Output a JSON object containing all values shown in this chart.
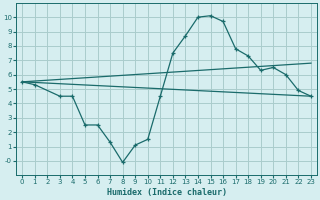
{
  "xlabel": "Humidex (Indice chaleur)",
  "bg_color": "#d6eef0",
  "grid_color": "#aacccc",
  "line_color": "#1a6b6b",
  "series": [
    {
      "x": [
        0,
        1,
        3,
        4,
        5,
        6,
        7,
        8,
        9,
        10,
        11,
        12,
        13,
        14,
        15,
        16,
        17,
        18,
        19,
        20,
        21,
        22,
        23
      ],
      "y": [
        5.5,
        5.3,
        4.5,
        4.5,
        2.5,
        2.5,
        1.3,
        -0.1,
        1.1,
        1.5,
        4.5,
        7.5,
        8.7,
        10.0,
        10.1,
        9.7,
        7.8,
        7.3,
        6.3,
        6.5,
        6.0,
        4.9,
        4.5
      ]
    },
    {
      "x": [
        0,
        23
      ],
      "y": [
        5.5,
        6.8
      ]
    },
    {
      "x": [
        0,
        23
      ],
      "y": [
        5.5,
        4.5
      ]
    }
  ],
  "xlim": [
    -0.5,
    23.5
  ],
  "ylim": [
    -1,
    11
  ],
  "yticks": [
    0,
    1,
    2,
    3,
    4,
    5,
    6,
    7,
    8,
    9,
    10
  ],
  "xticks": [
    0,
    1,
    2,
    3,
    4,
    5,
    6,
    7,
    8,
    9,
    10,
    11,
    12,
    13,
    14,
    15,
    16,
    17,
    18,
    19,
    20,
    21,
    22,
    23
  ]
}
